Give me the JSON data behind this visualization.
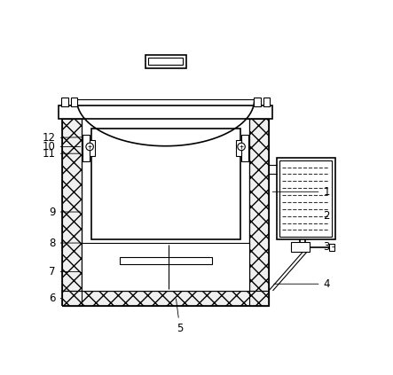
{
  "bg_color": "#ffffff",
  "line_color": "#000000",
  "label_fontsize": 8.5,
  "hatch_pattern": "xx",
  "wall_color": "#f0f0f0",
  "inner_color": "#ffffff",
  "box_dash_color": "#444444"
}
